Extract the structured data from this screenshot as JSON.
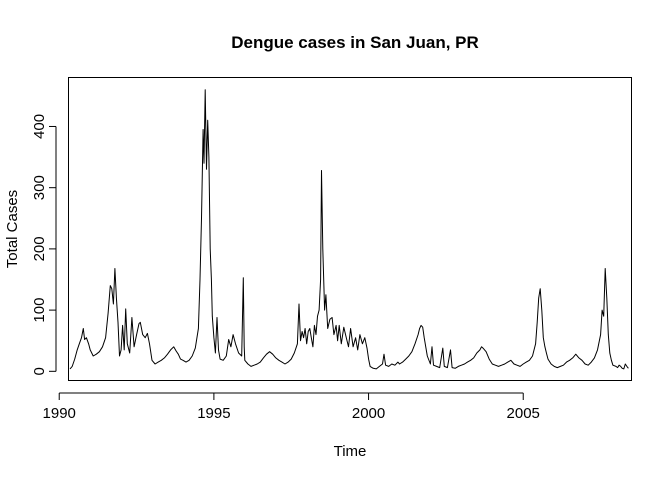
{
  "chart_data": {
    "type": "line",
    "title": "Dengue cases in San Juan, PR",
    "xlabel": "Time",
    "ylabel": "Total Cases",
    "xlim": [
      1990.3,
      2008.5
    ],
    "ylim": [
      -15,
      480
    ],
    "x_ticks": [
      1990,
      1995,
      2000,
      2005
    ],
    "y_ticks": [
      0,
      100,
      200,
      300,
      400
    ],
    "grid": false,
    "legend": "none",
    "series": [
      {
        "color": "#000000",
        "points": [
          [
            1990.35,
            4
          ],
          [
            1990.42,
            8
          ],
          [
            1990.5,
            20
          ],
          [
            1990.58,
            35
          ],
          [
            1990.65,
            45
          ],
          [
            1990.72,
            55
          ],
          [
            1990.78,
            70
          ],
          [
            1990.82,
            52
          ],
          [
            1990.88,
            55
          ],
          [
            1990.95,
            45
          ],
          [
            1991.0,
            35
          ],
          [
            1991.1,
            25
          ],
          [
            1991.2,
            28
          ],
          [
            1991.3,
            32
          ],
          [
            1991.4,
            40
          ],
          [
            1991.5,
            55
          ],
          [
            1991.58,
            95
          ],
          [
            1991.65,
            140
          ],
          [
            1991.7,
            135
          ],
          [
            1991.75,
            110
          ],
          [
            1991.8,
            168
          ],
          [
            1991.85,
            120
          ],
          [
            1991.9,
            80
          ],
          [
            1991.95,
            25
          ],
          [
            1992.0,
            35
          ],
          [
            1992.05,
            75
          ],
          [
            1992.1,
            35
          ],
          [
            1992.15,
            102
          ],
          [
            1992.2,
            45
          ],
          [
            1992.28,
            30
          ],
          [
            1992.35,
            88
          ],
          [
            1992.42,
            40
          ],
          [
            1992.5,
            60
          ],
          [
            1992.58,
            78
          ],
          [
            1992.62,
            80
          ],
          [
            1992.7,
            60
          ],
          [
            1992.78,
            55
          ],
          [
            1992.85,
            62
          ],
          [
            1992.92,
            45
          ],
          [
            1993.0,
            18
          ],
          [
            1993.1,
            12
          ],
          [
            1993.2,
            15
          ],
          [
            1993.3,
            18
          ],
          [
            1993.4,
            22
          ],
          [
            1993.5,
            28
          ],
          [
            1993.6,
            35
          ],
          [
            1993.7,
            40
          ],
          [
            1993.78,
            33
          ],
          [
            1993.85,
            28
          ],
          [
            1993.92,
            20
          ],
          [
            1994.0,
            18
          ],
          [
            1994.1,
            15
          ],
          [
            1994.2,
            18
          ],
          [
            1994.3,
            25
          ],
          [
            1994.4,
            38
          ],
          [
            1994.5,
            70
          ],
          [
            1994.55,
            150
          ],
          [
            1994.6,
            250
          ],
          [
            1994.65,
            395
          ],
          [
            1994.68,
            340
          ],
          [
            1994.72,
            460
          ],
          [
            1994.76,
            330
          ],
          [
            1994.8,
            410
          ],
          [
            1994.84,
            350
          ],
          [
            1994.88,
            200
          ],
          [
            1994.92,
            150
          ],
          [
            1994.95,
            90
          ],
          [
            1995.0,
            55
          ],
          [
            1995.05,
            30
          ],
          [
            1995.1,
            88
          ],
          [
            1995.15,
            35
          ],
          [
            1995.2,
            20
          ],
          [
            1995.3,
            18
          ],
          [
            1995.4,
            25
          ],
          [
            1995.48,
            52
          ],
          [
            1995.55,
            40
          ],
          [
            1995.62,
            60
          ],
          [
            1995.7,
            45
          ],
          [
            1995.8,
            30
          ],
          [
            1995.9,
            25
          ],
          [
            1995.95,
            153
          ],
          [
            1995.98,
            40
          ],
          [
            1996.0,
            18
          ],
          [
            1996.1,
            12
          ],
          [
            1996.2,
            8
          ],
          [
            1996.3,
            10
          ],
          [
            1996.4,
            12
          ],
          [
            1996.5,
            15
          ],
          [
            1996.6,
            22
          ],
          [
            1996.7,
            28
          ],
          [
            1996.8,
            32
          ],
          [
            1996.9,
            28
          ],
          [
            1997.0,
            22
          ],
          [
            1997.1,
            18
          ],
          [
            1997.2,
            15
          ],
          [
            1997.3,
            12
          ],
          [
            1997.4,
            15
          ],
          [
            1997.5,
            20
          ],
          [
            1997.6,
            30
          ],
          [
            1997.7,
            45
          ],
          [
            1997.75,
            110
          ],
          [
            1997.8,
            50
          ],
          [
            1997.85,
            65
          ],
          [
            1997.9,
            55
          ],
          [
            1997.95,
            70
          ],
          [
            1998.0,
            45
          ],
          [
            1998.05,
            65
          ],
          [
            1998.1,
            70
          ],
          [
            1998.15,
            55
          ],
          [
            1998.2,
            40
          ],
          [
            1998.25,
            75
          ],
          [
            1998.3,
            60
          ],
          [
            1998.35,
            90
          ],
          [
            1998.4,
            100
          ],
          [
            1998.45,
            150
          ],
          [
            1998.48,
            328
          ],
          [
            1998.52,
            200
          ],
          [
            1998.58,
            100
          ],
          [
            1998.62,
            125
          ],
          [
            1998.68,
            70
          ],
          [
            1998.75,
            85
          ],
          [
            1998.82,
            88
          ],
          [
            1998.88,
            60
          ],
          [
            1998.95,
            75
          ],
          [
            1999.0,
            50
          ],
          [
            1999.05,
            75
          ],
          [
            1999.12,
            45
          ],
          [
            1999.2,
            72
          ],
          [
            1999.28,
            55
          ],
          [
            1999.35,
            40
          ],
          [
            1999.42,
            70
          ],
          [
            1999.5,
            40
          ],
          [
            1999.58,
            55
          ],
          [
            1999.65,
            35
          ],
          [
            1999.72,
            60
          ],
          [
            1999.8,
            45
          ],
          [
            1999.88,
            55
          ],
          [
            1999.95,
            38
          ],
          [
            2000.0,
            20
          ],
          [
            2000.05,
            8
          ],
          [
            2000.15,
            5
          ],
          [
            2000.25,
            4
          ],
          [
            2000.35,
            8
          ],
          [
            2000.45,
            12
          ],
          [
            2000.5,
            28
          ],
          [
            2000.55,
            10
          ],
          [
            2000.65,
            8
          ],
          [
            2000.75,
            12
          ],
          [
            2000.85,
            10
          ],
          [
            2000.95,
            15
          ],
          [
            2001.0,
            12
          ],
          [
            2001.1,
            15
          ],
          [
            2001.2,
            20
          ],
          [
            2001.3,
            25
          ],
          [
            2001.4,
            32
          ],
          [
            2001.5,
            45
          ],
          [
            2001.6,
            60
          ],
          [
            2001.65,
            70
          ],
          [
            2001.7,
            75
          ],
          [
            2001.75,
            72
          ],
          [
            2001.8,
            55
          ],
          [
            2001.9,
            25
          ],
          [
            2002.0,
            12
          ],
          [
            2002.05,
            40
          ],
          [
            2002.1,
            10
          ],
          [
            2002.2,
            8
          ],
          [
            2002.3,
            6
          ],
          [
            2002.4,
            38
          ],
          [
            2002.45,
            8
          ],
          [
            2002.55,
            6
          ],
          [
            2002.65,
            35
          ],
          [
            2002.7,
            6
          ],
          [
            2002.8,
            5
          ],
          [
            2002.9,
            8
          ],
          [
            2003.0,
            10
          ],
          [
            2003.1,
            12
          ],
          [
            2003.2,
            15
          ],
          [
            2003.3,
            18
          ],
          [
            2003.4,
            22
          ],
          [
            2003.5,
            30
          ],
          [
            2003.6,
            35
          ],
          [
            2003.65,
            40
          ],
          [
            2003.7,
            38
          ],
          [
            2003.8,
            32
          ],
          [
            2003.9,
            20
          ],
          [
            2004.0,
            12
          ],
          [
            2004.1,
            10
          ],
          [
            2004.2,
            8
          ],
          [
            2004.3,
            10
          ],
          [
            2004.4,
            12
          ],
          [
            2004.5,
            15
          ],
          [
            2004.6,
            18
          ],
          [
            2004.7,
            12
          ],
          [
            2004.8,
            10
          ],
          [
            2004.9,
            8
          ],
          [
            2005.0,
            12
          ],
          [
            2005.1,
            15
          ],
          [
            2005.2,
            18
          ],
          [
            2005.3,
            25
          ],
          [
            2005.4,
            45
          ],
          [
            2005.45,
            80
          ],
          [
            2005.5,
            120
          ],
          [
            2005.55,
            135
          ],
          [
            2005.6,
            100
          ],
          [
            2005.65,
            55
          ],
          [
            2005.7,
            40
          ],
          [
            2005.75,
            30
          ],
          [
            2005.8,
            20
          ],
          [
            2005.9,
            12
          ],
          [
            2006.0,
            8
          ],
          [
            2006.1,
            6
          ],
          [
            2006.2,
            8
          ],
          [
            2006.3,
            10
          ],
          [
            2006.4,
            15
          ],
          [
            2006.5,
            18
          ],
          [
            2006.6,
            22
          ],
          [
            2006.7,
            28
          ],
          [
            2006.8,
            22
          ],
          [
            2006.9,
            18
          ],
          [
            2007.0,
            12
          ],
          [
            2007.1,
            10
          ],
          [
            2007.2,
            15
          ],
          [
            2007.3,
            22
          ],
          [
            2007.4,
            35
          ],
          [
            2007.5,
            60
          ],
          [
            2007.55,
            100
          ],
          [
            2007.6,
            90
          ],
          [
            2007.65,
            168
          ],
          [
            2007.7,
            120
          ],
          [
            2007.75,
            60
          ],
          [
            2007.8,
            30
          ],
          [
            2007.85,
            18
          ],
          [
            2007.9,
            10
          ],
          [
            2008.0,
            8
          ],
          [
            2008.05,
            6
          ],
          [
            2008.1,
            10
          ],
          [
            2008.15,
            8
          ],
          [
            2008.2,
            5
          ],
          [
            2008.25,
            4
          ],
          [
            2008.3,
            12
          ],
          [
            2008.35,
            8
          ],
          [
            2008.4,
            5
          ]
        ]
      }
    ]
  }
}
